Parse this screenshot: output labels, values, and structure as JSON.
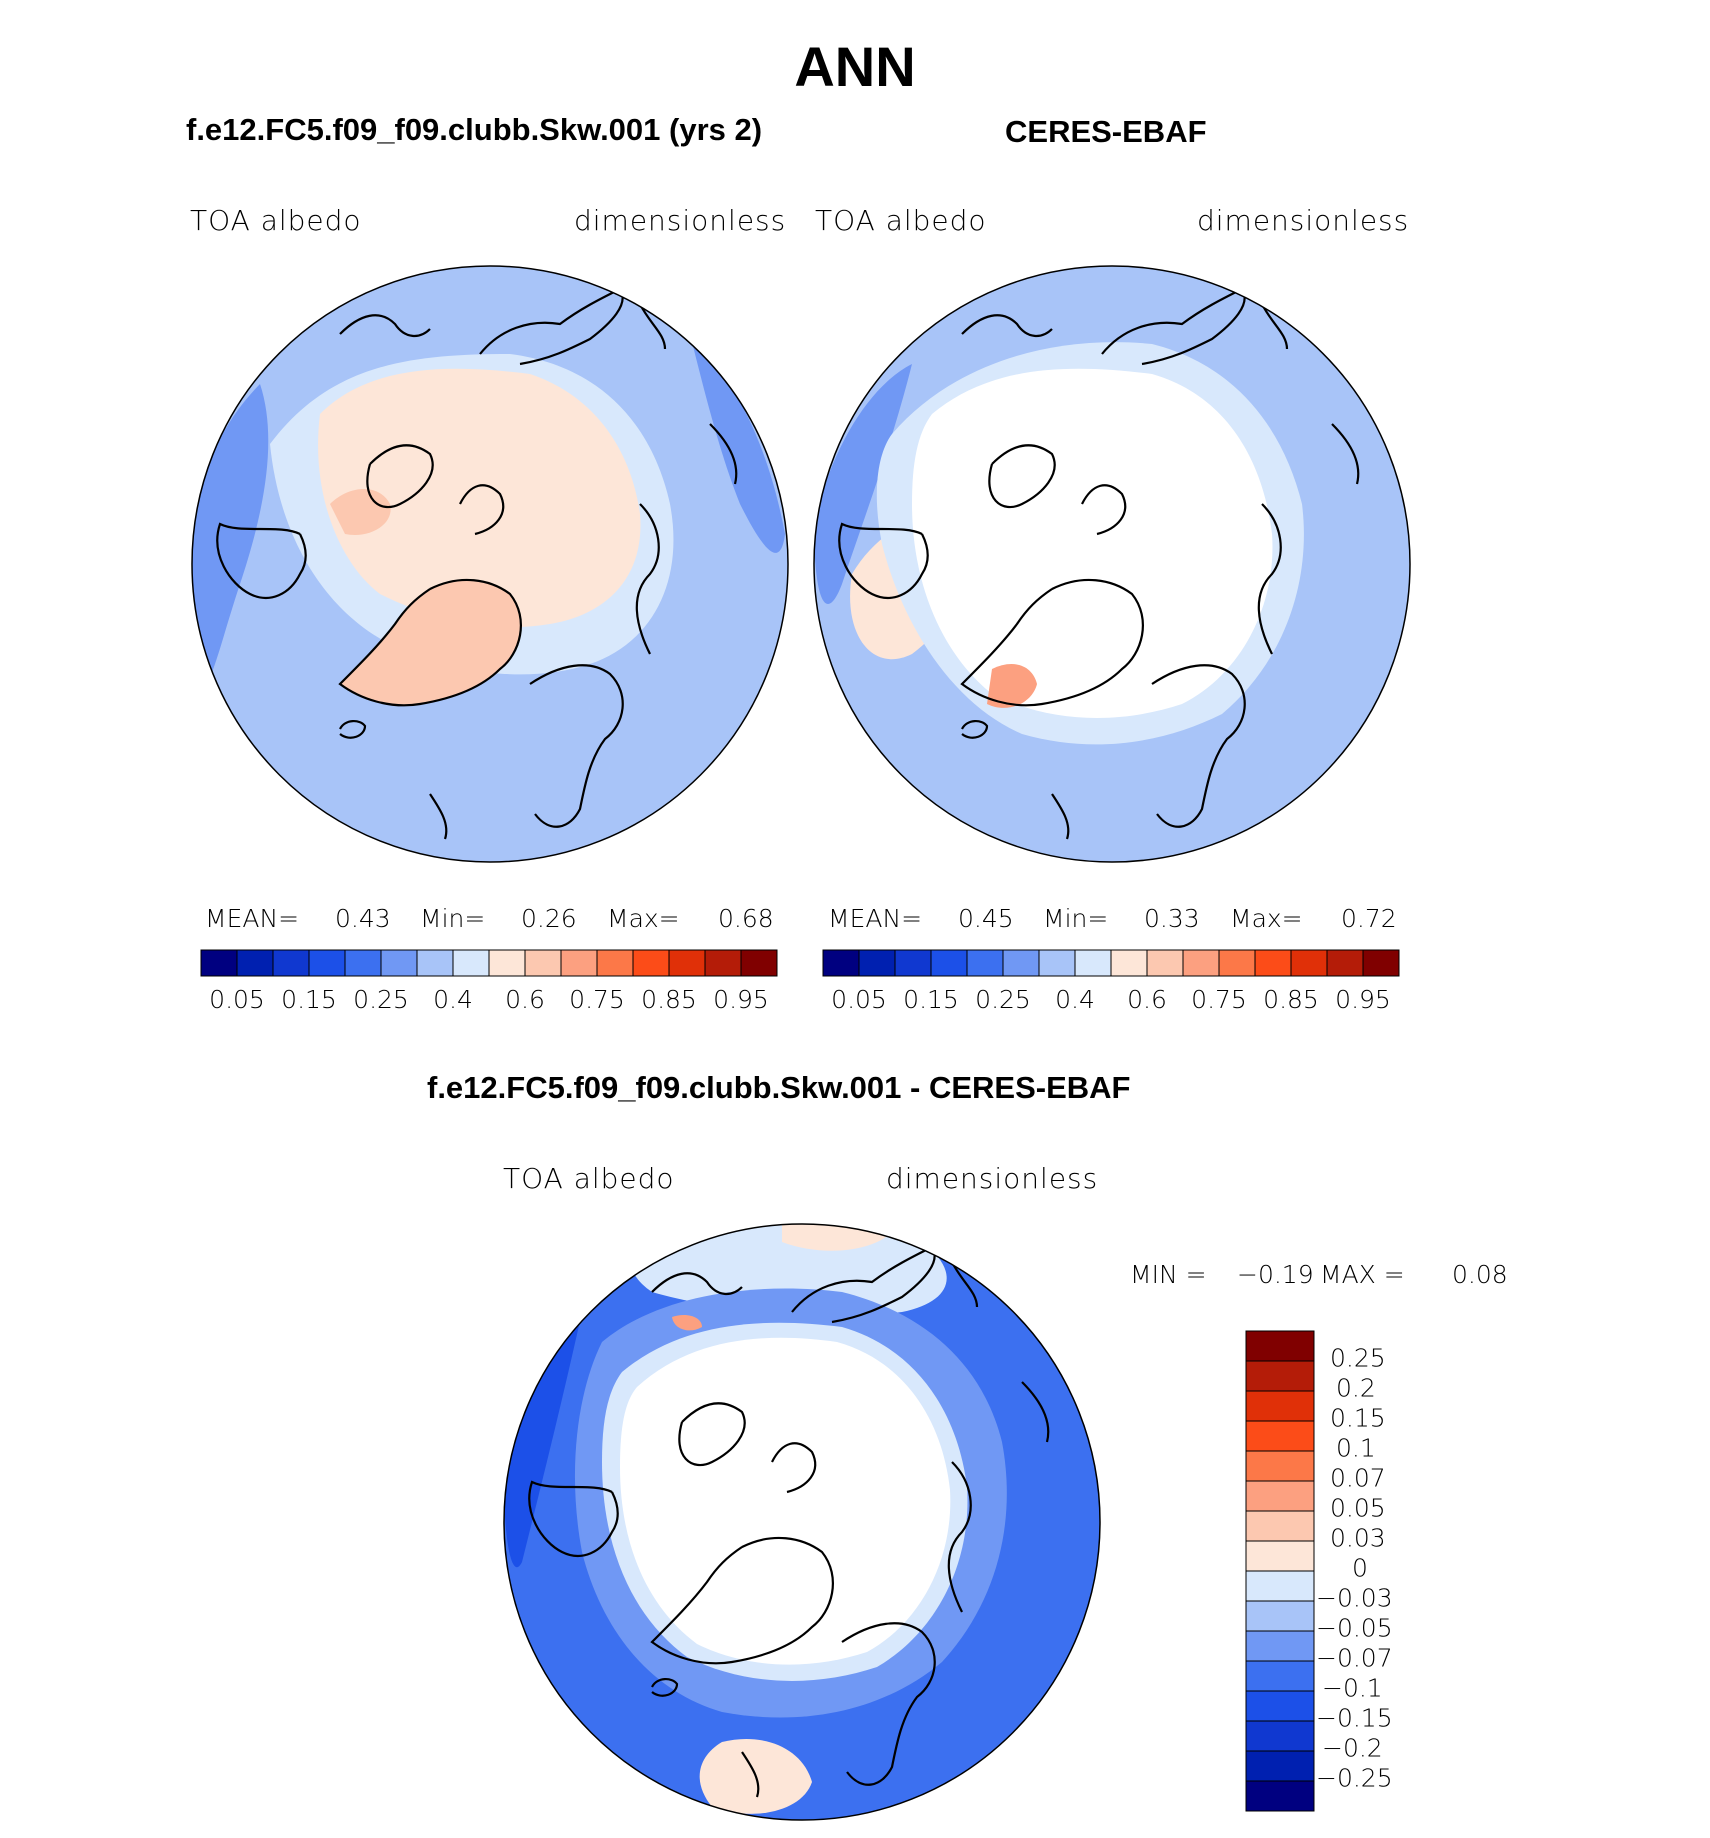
{
  "title": "ANN",
  "colors": {
    "levels_main": [
      "#000080",
      "#0020b0",
      "#1038d0",
      "#1c50e8",
      "#3c70f0",
      "#7098f4",
      "#a8c4f8",
      "#d8e8fc",
      "#fde6d8",
      "#fcc8b0",
      "#fca080",
      "#fc7848",
      "#fc4c18",
      "#e03008",
      "#b41c08",
      "#800000"
    ],
    "levels_diff": [
      "#000080",
      "#0020b0",
      "#1038d0",
      "#1c50e8",
      "#3c70f0",
      "#7098f4",
      "#a8c4f8",
      "#d8e8fc",
      "#fde6d8",
      "#fcc8b0",
      "#fca080",
      "#fc7848",
      "#fc4c18",
      "#e03008",
      "#b41c08",
      "#800000"
    ],
    "land_outline": "#000000"
  },
  "chart_data": [
    {
      "type": "heatmap",
      "projection": "north-polar-stereographic",
      "panel_title": "f.e12.FC5.f09_f09.clubb.Skw.001 (yrs 2)",
      "left_label": "TOA albedo",
      "right_label": "dimensionless",
      "stats": {
        "mean_label": "MEAN=",
        "mean": "0.43",
        "min_label": "Min=",
        "min": "0.26",
        "max_label": "Max=",
        "max": "0.68"
      },
      "colorbar_ticks": [
        "0.05",
        "0.15",
        "0.25",
        "0.4",
        "0.6",
        "0.75",
        "0.85",
        "0.95"
      ],
      "value_range": [
        0,
        1
      ]
    },
    {
      "type": "heatmap",
      "projection": "north-polar-stereographic",
      "panel_title": "CERES-EBAF",
      "left_label": "TOA albedo",
      "right_label": "dimensionless",
      "stats": {
        "mean_label": "MEAN=",
        "mean": "0.45",
        "min_label": "Min=",
        "min": "0.33",
        "max_label": "Max=",
        "max": "0.72"
      },
      "colorbar_ticks": [
        "0.05",
        "0.15",
        "0.25",
        "0.4",
        "0.6",
        "0.75",
        "0.85",
        "0.95"
      ],
      "value_range": [
        0,
        1
      ]
    },
    {
      "type": "heatmap",
      "projection": "north-polar-stereographic",
      "panel_title": "f.e12.FC5.f09_f09.clubb.Skw.001 - CERES-EBAF",
      "left_label": "TOA albedo",
      "right_label": "dimensionless",
      "stats": {
        "min_label": "MIN =",
        "min": "−0.19",
        "max_label": "MAX =",
        "max": "0.08"
      },
      "colorbar_ticks": [
        "0.25",
        "0.2",
        "0.15",
        "0.1",
        "0.07",
        "0.05",
        "0.03",
        "0",
        "−0.03",
        "−0.05",
        "−0.07",
        "−0.1",
        "−0.15",
        "−0.2",
        "−0.25"
      ],
      "value_range": [
        -0.3,
        0.3
      ]
    }
  ]
}
